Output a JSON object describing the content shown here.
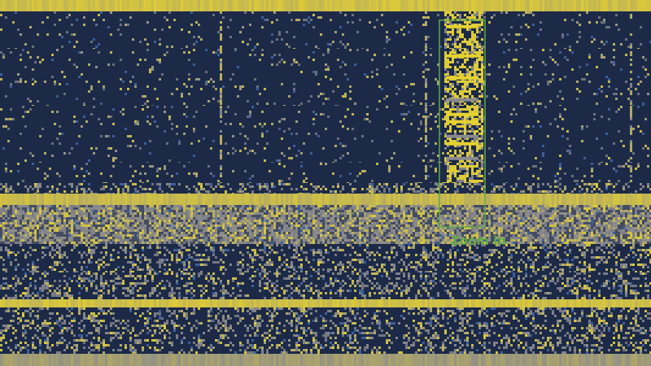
{
  "chart_data": {
    "type": "heatmap",
    "title": "",
    "xlabel": "",
    "ylabel": "",
    "grid": false,
    "colors": {
      "background": "#1c2a48",
      "low": "#26324f",
      "mid": "#8a8a8e",
      "high": "#e6d22e",
      "accent_blue": "#3c5e9a",
      "annotation": "#5fa84a"
    },
    "rows": [
      {
        "kind": "hot-band",
        "level": 0.95
      },
      {
        "kind": "sparse",
        "level": 0.15
      },
      {
        "kind": "sparse",
        "level": 0.2
      },
      {
        "kind": "sparse",
        "level": 0.25
      },
      {
        "kind": "sparse",
        "level": 0.2
      },
      {
        "kind": "medium",
        "level": 0.35
      },
      {
        "kind": "hot-band",
        "level": 0.9
      },
      {
        "kind": "dense",
        "level": 0.55
      },
      {
        "kind": "dense",
        "level": 0.5
      },
      {
        "kind": "medium",
        "level": 0.4
      },
      {
        "kind": "medium",
        "level": 0.45
      },
      {
        "kind": "hot-band",
        "level": 0.95
      },
      {
        "kind": "medium",
        "level": 0.3
      },
      {
        "kind": "hot-band",
        "level": 0.7
      }
    ],
    "hotspot_columns": [
      {
        "col_from": 0.335,
        "col_to": 0.34,
        "level": 0.75
      },
      {
        "col_from": 0.65,
        "col_to": 0.655,
        "level": 0.7
      },
      {
        "col_from": 0.68,
        "col_to": 0.74,
        "level": 0.95
      },
      {
        "col_from": 0.965,
        "col_to": 0.97,
        "level": 0.7
      }
    ],
    "annotation": {
      "label": "Zoom in",
      "region": {
        "col_from": 0.675,
        "col_to": 0.745,
        "row_from": 0.055,
        "row_to": 0.62
      }
    }
  }
}
